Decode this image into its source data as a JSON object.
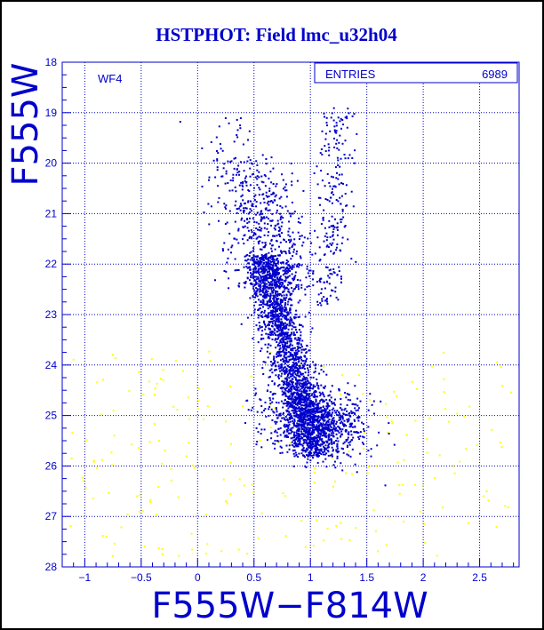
{
  "chart_data": {
    "type": "scatter",
    "title": "HSTPHOT: Field lmc_u32h04",
    "xlabel": "F555W−F814W",
    "ylabel": "F555W",
    "xlim": [
      -1.2,
      2.85
    ],
    "ylim": [
      28,
      18
    ],
    "y_inverted": true,
    "grid": true,
    "xticks": [
      -1,
      -0.5,
      0,
      0.5,
      1,
      1.5,
      2,
      2.5
    ],
    "xtick_labels": [
      "−1",
      "−0.5",
      "0",
      "0.5",
      "1",
      "1.5",
      "2",
      "2.5"
    ],
    "yticks": [
      18,
      19,
      20,
      21,
      22,
      23,
      24,
      25,
      26,
      27,
      28
    ],
    "ytick_labels": [
      "18",
      "19",
      "20",
      "21",
      "22",
      "23",
      "24",
      "25",
      "26",
      "27",
      "28"
    ],
    "annotation": "WF4",
    "stats_box": {
      "label": "ENTRIES",
      "value": "6989"
    },
    "colors": {
      "background": "#ffffff",
      "frame": "#0000cc",
      "grid": "#0000cc",
      "text": "#0000cc",
      "main_points": "#0000cc",
      "faint_points": "#ffff00"
    },
    "series": [
      {
        "color": "#0000cc",
        "components": [
          {
            "kind": "main_sequence",
            "count": 2100,
            "center": [
              0.78,
              23.6
            ],
            "color_spread": 0.09,
            "mag_range": [
              21.8,
              25.8
            ],
            "slope": 0.12
          },
          {
            "kind": "turnoff",
            "count": 900,
            "center": [
              1.05,
              25.1
            ],
            "color_spread": 0.22,
            "mag_spread": 0.35
          },
          {
            "kind": "upper_branch",
            "count": 600,
            "center": [
              0.55,
              21.2
            ],
            "color_spread": 0.18,
            "mag_range": [
              19.8,
              22.5
            ]
          },
          {
            "kind": "red_giant_branch",
            "count": 230,
            "center": [
              1.2,
              20.5
            ],
            "color_spread": 0.08,
            "mag_range": [
              18.8,
              22.8
            ]
          },
          {
            "kind": "bright_sparse",
            "count": 40,
            "center": [
              0.25,
              19.6
            ],
            "color_spread": 0.12,
            "mag_range": [
              18.9,
              20.3
            ]
          }
        ]
      },
      {
        "color": "#ffff00",
        "components": [
          {
            "kind": "faint_field",
            "count": 220,
            "x_range": [
              -1.15,
              2.8
            ],
            "mag_range": [
              23.7,
              27.8
            ]
          }
        ]
      }
    ]
  }
}
